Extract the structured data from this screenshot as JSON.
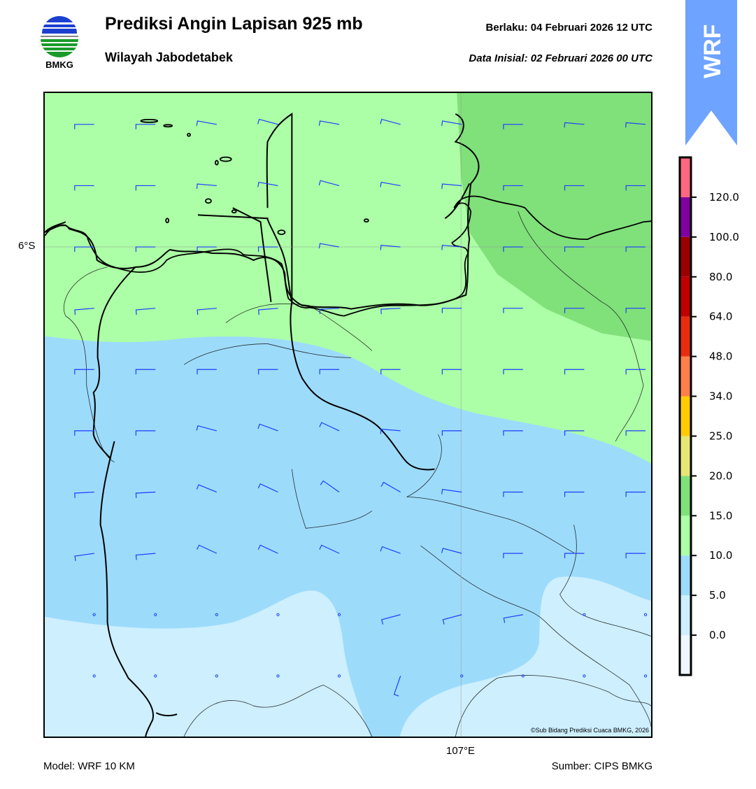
{
  "header": {
    "title": "Prediksi Angin Lapisan 925 mb",
    "subtitle": "Wilayah Jabodetabek",
    "valid_time": "Berlaku:  04 Februari 2026 12 UTC",
    "initial_time": "Data Inisial:  02 Februari 2026 00 UTC"
  },
  "logo": {
    "text": "BMKG"
  },
  "banner": {
    "text": "WRF",
    "color": "#6ea3ff"
  },
  "map": {
    "lat_label": "6°S",
    "lon_label": "107°E",
    "copyright": "©Sub Bidang Prediksi Cuaca BMKG, 2026",
    "colors": {
      "c0_5": "#cdeffe",
      "c5_10": "#9ddbfb",
      "c10_15": "#acffa6",
      "c15_20": "#80e07a"
    },
    "wind_barb_color": "#1f3cff",
    "wind_direction_grid_deg": [
      [
        0,
        0,
        10,
        15,
        10,
        15,
        10,
        0,
        5,
        5
      ],
      [
        0,
        0,
        5,
        10,
        15,
        10,
        5,
        0,
        0,
        0
      ],
      [
        0,
        0,
        0,
        0,
        10,
        5,
        5,
        0,
        0,
        0
      ],
      [
        -5,
        -5,
        -5,
        -5,
        -3,
        -3,
        0,
        0,
        0,
        0
      ],
      [
        0,
        0,
        0,
        0,
        0,
        0,
        0,
        0,
        0,
        0
      ],
      [
        0,
        0,
        15,
        20,
        25,
        5,
        0,
        0,
        0,
        0
      ],
      [
        -3,
        -3,
        22,
        25,
        35,
        30,
        8,
        0,
        0,
        0
      ],
      [
        -8,
        -5,
        25,
        25,
        25,
        20,
        15,
        0,
        0,
        0
      ],
      [
        null,
        null,
        null,
        null,
        null,
        -15,
        -15,
        -10,
        null,
        null
      ],
      [
        null,
        null,
        null,
        null,
        null,
        -71,
        null,
        null,
        null,
        null
      ]
    ]
  },
  "colorbar": {
    "colors": [
      "#eef6ff",
      "#cdeffe",
      "#9ddbfb",
      "#acffa6",
      "#80e07a",
      "#e6e675",
      "#ffcc00",
      "#ff7f4a",
      "#e92c10",
      "#c00000",
      "#9b0000",
      "#7f00a0",
      "#ff6680"
    ],
    "ticks": [
      "0.0",
      "5.0",
      "10.0",
      "15.0",
      "20.0",
      "25.0",
      "34.0",
      "48.0",
      "64.0",
      "80.0",
      "100.0",
      "120.0"
    ]
  },
  "footer": {
    "model": "Model: WRF 10 KM",
    "source": "Sumber: CIPS BMKG"
  }
}
